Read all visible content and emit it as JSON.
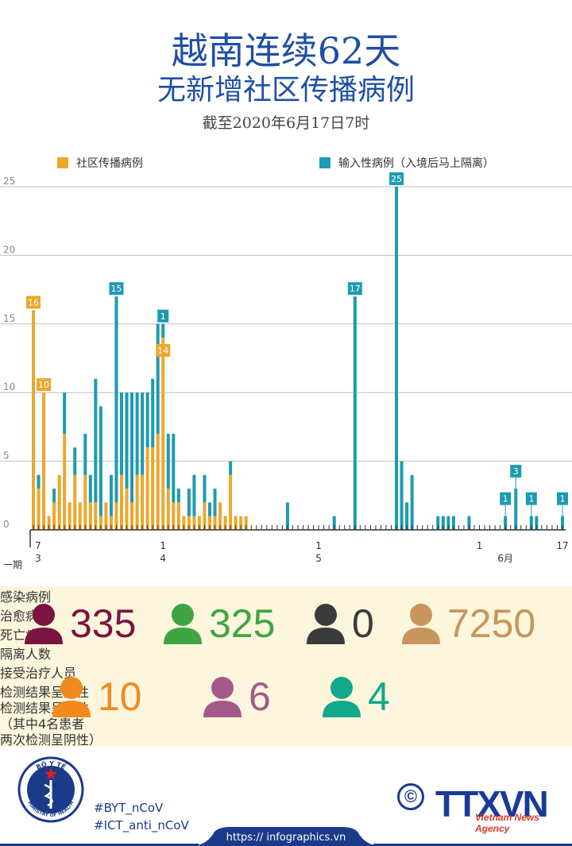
{
  "header": {
    "title_line1": "越南连续62天",
    "title_line2": "无新增社区传播病例",
    "subtitle": "截至2020年6月17日7时"
  },
  "legend": {
    "community": "社区传播病例",
    "imported": "输入性病例（入境后马上隔离）"
  },
  "colors": {
    "community": "#eca72c",
    "imported": "#1d9bb0",
    "grid": "#bfbfbf",
    "axis": "#333333",
    "title": "#1f4fa5",
    "stats_bg": "#fbf6dc"
  },
  "chart_data": {
    "type": "bar",
    "stacked": true,
    "ylim": [
      0,
      25
    ],
    "yticks": [
      0,
      5,
      10,
      15,
      20,
      25
    ],
    "xlabel": "",
    "ylabel": "",
    "x_tick_labels": [
      {
        "day": 0,
        "text": "7"
      },
      {
        "day": 0,
        "text": "3",
        "row": 2
      },
      {
        "day": 25,
        "text": "1"
      },
      {
        "day": 25,
        "text": "4",
        "row": 2
      },
      {
        "day": 55,
        "text": "1"
      },
      {
        "day": 55,
        "text": "5",
        "row": 2
      },
      {
        "day": 86,
        "text": "1"
      },
      {
        "day": 91,
        "text": "6月",
        "row": 2
      },
      {
        "day": 102,
        "text": "17"
      }
    ],
    "corner_label": "一期",
    "series": [
      {
        "name": "社区传播病例",
        "color": "#eca72c",
        "points": [
          [
            0,
            16
          ],
          [
            1,
            3
          ],
          [
            2,
            10
          ],
          [
            3,
            1
          ],
          [
            4,
            2
          ],
          [
            5,
            4
          ],
          [
            6,
            7
          ],
          [
            7,
            2
          ],
          [
            8,
            4
          ],
          [
            9,
            2
          ],
          [
            10,
            4
          ],
          [
            11,
            2
          ],
          [
            12,
            2
          ],
          [
            13,
            1
          ],
          [
            14,
            2
          ],
          [
            15,
            1
          ],
          [
            16,
            2
          ],
          [
            17,
            4
          ],
          [
            18,
            3
          ],
          [
            19,
            2
          ],
          [
            20,
            4
          ],
          [
            21,
            4
          ],
          [
            22,
            6
          ],
          [
            23,
            6
          ],
          [
            24,
            7
          ],
          [
            25,
            14
          ],
          [
            26,
            3
          ],
          [
            27,
            2
          ],
          [
            28,
            2
          ],
          [
            29,
            1
          ],
          [
            30,
            1
          ],
          [
            31,
            1
          ],
          [
            32,
            1
          ],
          [
            33,
            2
          ],
          [
            34,
            1
          ],
          [
            35,
            1
          ],
          [
            36,
            2
          ],
          [
            37,
            1
          ],
          [
            38,
            4
          ],
          [
            39,
            1
          ],
          [
            40,
            1
          ],
          [
            41,
            1
          ]
        ]
      },
      {
        "name": "输入性病例（入境后马上隔离）",
        "color": "#1d9bb0",
        "points": [
          [
            1,
            1
          ],
          [
            4,
            1
          ],
          [
            6,
            3
          ],
          [
            8,
            2
          ],
          [
            10,
            3
          ],
          [
            11,
            2
          ],
          [
            12,
            9
          ],
          [
            13,
            8
          ],
          [
            15,
            3
          ],
          [
            16,
            15
          ],
          [
            17,
            6
          ],
          [
            18,
            7
          ],
          [
            19,
            8
          ],
          [
            20,
            6
          ],
          [
            21,
            6
          ],
          [
            22,
            4
          ],
          [
            23,
            5
          ],
          [
            24,
            8
          ],
          [
            25,
            1
          ],
          [
            26,
            4
          ],
          [
            27,
            5
          ],
          [
            28,
            1
          ],
          [
            30,
            2
          ],
          [
            31,
            3
          ],
          [
            33,
            2
          ],
          [
            34,
            1
          ],
          [
            35,
            2
          ],
          [
            38,
            1
          ],
          [
            49,
            2
          ],
          [
            58,
            1
          ],
          [
            62,
            17
          ],
          [
            70,
            25
          ],
          [
            71,
            5
          ],
          [
            72,
            2
          ],
          [
            73,
            4
          ],
          [
            78,
            1
          ],
          [
            79,
            1
          ],
          [
            80,
            1
          ],
          [
            81,
            1
          ],
          [
            84,
            1
          ],
          [
            91,
            1
          ],
          [
            93,
            3
          ],
          [
            96,
            1
          ],
          [
            97,
            1
          ],
          [
            102,
            1
          ]
        ]
      }
    ],
    "data_labels": [
      {
        "series": 0,
        "day": 0,
        "text": "16"
      },
      {
        "series": 0,
        "day": 2,
        "text": "10"
      },
      {
        "series": 0,
        "day": 25,
        "text": "14"
      },
      {
        "series": 1,
        "day": 16,
        "text": "15"
      },
      {
        "series": 1,
        "day": 25,
        "text": "1"
      },
      {
        "series": 1,
        "day": 62,
        "text": "17"
      },
      {
        "series": 1,
        "day": 70,
        "text": "25"
      },
      {
        "series": 1,
        "day": 91,
        "text": "1"
      },
      {
        "series": 1,
        "day": 93,
        "text": "3"
      },
      {
        "series": 1,
        "day": 96,
        "text": "1"
      },
      {
        "series": 1,
        "day": 102,
        "text": "1"
      }
    ]
  },
  "stats": {
    "infected": {
      "value": "335",
      "label": "感染病例",
      "color": "#7b1440"
    },
    "recovered": {
      "value": "325",
      "label": "治愈病例",
      "color": "#3fa543"
    },
    "deaths": {
      "value": "0",
      "label": "死亡病例",
      "color": "#3b3b3b"
    },
    "quarantined": {
      "value": "7250",
      "label": "隔离人数",
      "color": "#c8955c"
    },
    "treating": {
      "value": "10",
      "label": "接受治疗人员",
      "color": "#f28a1e"
    },
    "positive": {
      "value": "6",
      "label": "检测结果呈阳性",
      "color": "#a35a8a"
    },
    "negative": {
      "value": "4",
      "label_line1": "检测结果呈阴性",
      "label_line2": "（其中4名患者",
      "label_line3": "两次检测呈阴性）",
      "color": "#12a88a"
    }
  },
  "footer": {
    "logo_top": "BỘ Y TẾ",
    "logo_bottom": "MINISTRY OF HEALTH",
    "tag1": "#BYT_nCoV",
    "tag2": "#ICT_anti_nCoV",
    "url": "https:// infographics.vn",
    "brand": "TTXVN",
    "brand_sub": "Vietnam News Agency",
    "copyright": "©"
  }
}
